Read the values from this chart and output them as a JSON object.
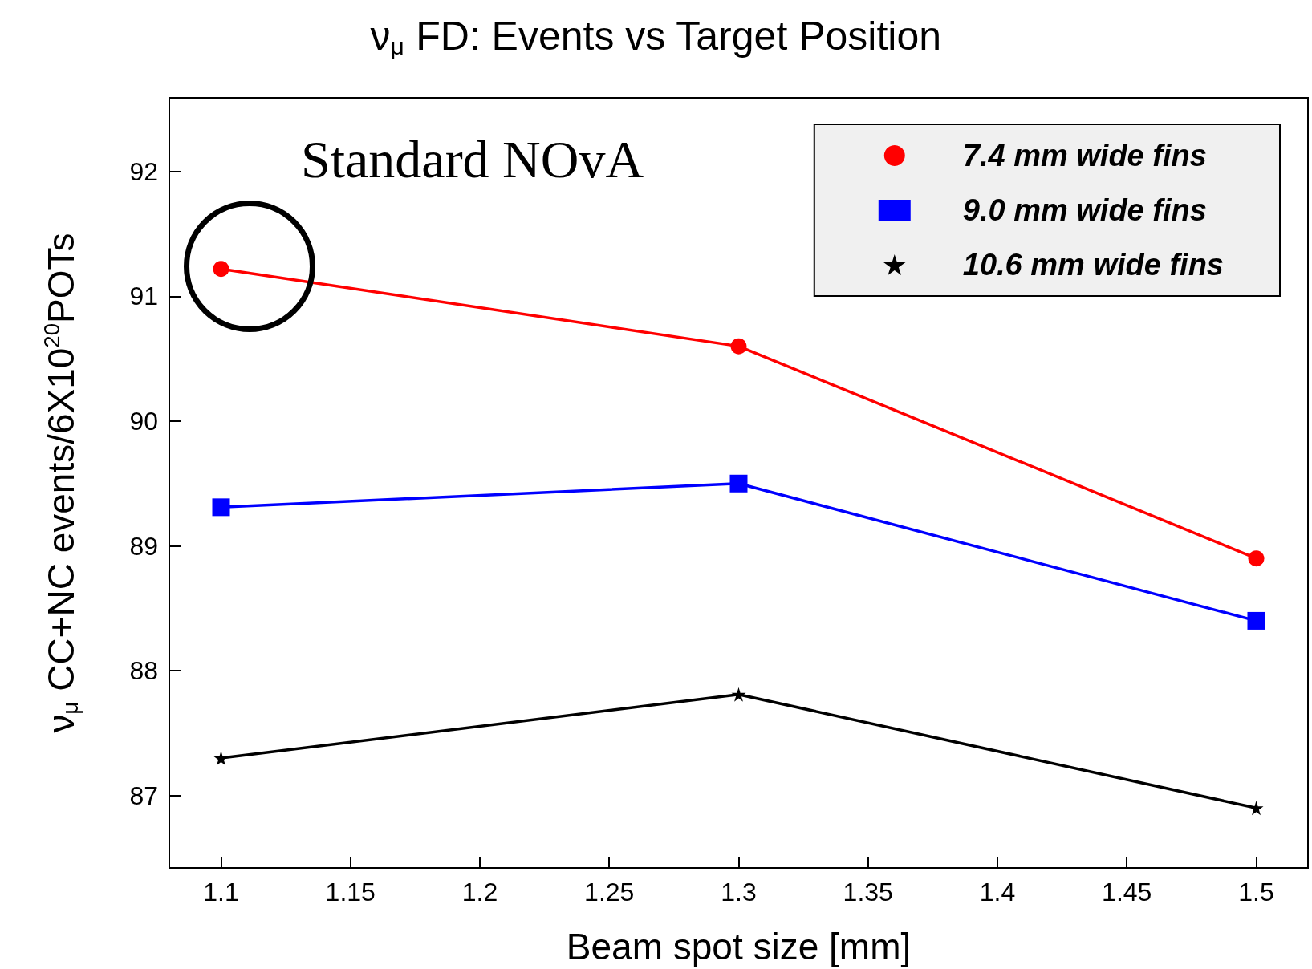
{
  "chart_data": {
    "type": "line",
    "title": "ν$_{μ}$ FD: Events vs Target Position",
    "xlabel": "Beam spot size [mm]",
    "ylabel": "ν$_{μ}$ CC+NC events/6X10$^{20}$POTs",
    "annotations": [
      "Standard NOvA"
    ],
    "x": [
      1.1,
      1.3,
      1.5
    ],
    "series": [
      {
        "name": "7.4 mm wide fins",
        "color": "#ff0000",
        "marker": "circle",
        "values": [
          91.22,
          90.6,
          88.9
        ]
      },
      {
        "name": "9.0 mm wide fins",
        "color": "#0000ff",
        "marker": "square",
        "values": [
          89.31,
          89.5,
          88.4
        ]
      },
      {
        "name": "10.6 mm wide fins",
        "color": "#000000",
        "marker": "star",
        "values": [
          87.3,
          87.81,
          86.9
        ]
      }
    ],
    "xlim": [
      1.08,
      1.52
    ],
    "xticks": [
      1.1,
      1.15,
      1.2,
      1.25,
      1.3,
      1.35,
      1.4,
      1.45,
      1.5
    ],
    "ylim": [
      86.42,
      92.59
    ],
    "yticks": [
      87,
      88,
      89,
      90,
      91,
      92
    ],
    "grid": false,
    "legend": "top right"
  }
}
